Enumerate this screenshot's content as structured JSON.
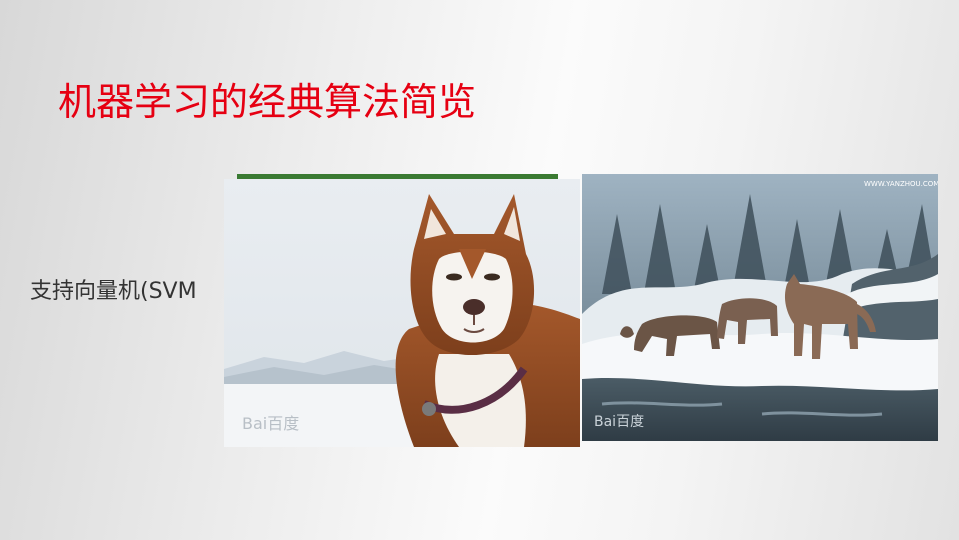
{
  "slide": {
    "title": "机器学习的经典算法简览",
    "bullet": "支持向量机(SVM",
    "title_color": "#e60012"
  },
  "images": {
    "husky": {
      "icon": "husky-dog-photo",
      "watermark": "Bai百度"
    },
    "wolves": {
      "icon": "wolves-in-snow-photo",
      "watermark": "Bai百度",
      "site_mark": "WWW.YANZHOU.COM"
    }
  }
}
